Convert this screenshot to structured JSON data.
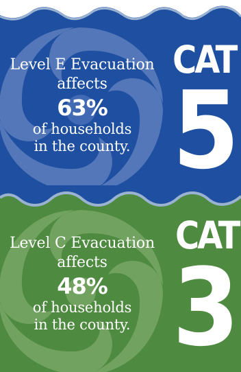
{
  "colors": {
    "top_panel": "#1f4fa0",
    "bottom_panel": "#4e8a3f",
    "wave_light": "#9bb3d3",
    "swirl_blue": "#5f7fc4",
    "swirl_green": "#8bb277",
    "text": "#ffffff"
  },
  "icons": {
    "top_swirl": "hurricane-swirl-icon",
    "bottom_swirl": "hurricane-swirl-icon",
    "waves": "wave-border-icon"
  },
  "cat5": {
    "label": "CAT",
    "number": "5",
    "line1": "Level E Evacuation",
    "line2": "affects",
    "percent": "63%",
    "line3": "of households",
    "line4": "in the county."
  },
  "cat3": {
    "label": "CAT",
    "number": "3",
    "line1": "Level C Evacuation",
    "line2": "affects",
    "percent": "48%",
    "line3": "of households",
    "line4": "in the county."
  }
}
